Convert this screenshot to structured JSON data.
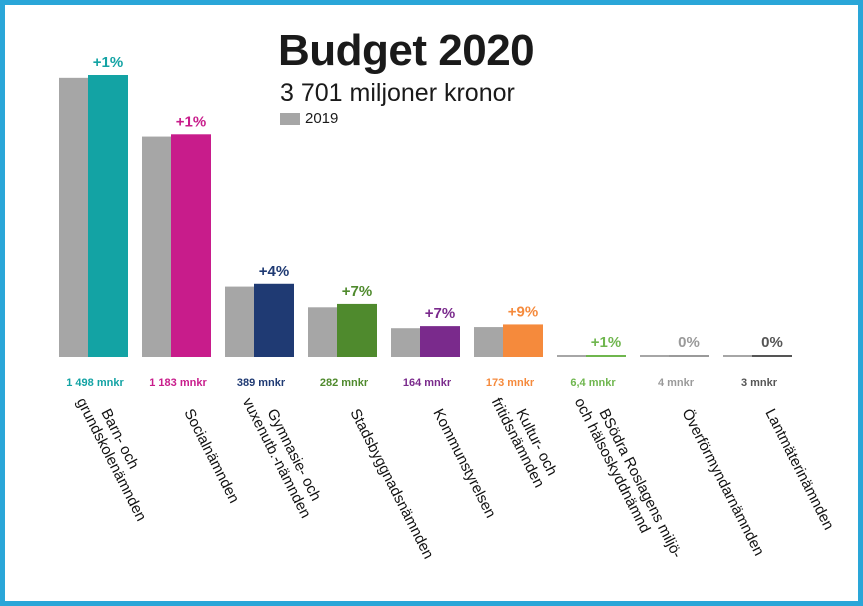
{
  "chart_data": {
    "type": "bar",
    "title": "Budget 2020",
    "subtitle": "3 701 miljoner kronor",
    "legend": [
      {
        "name": "2019",
        "color": "#a6a6a6"
      }
    ],
    "categories": [
      "Barn- och grundskolenämnden",
      "Socialnämnden",
      "Gymnasie- och vuxenutb.-nämnden",
      "Stadsbyggnadsnämnden",
      "Kommunstyrelsen",
      "Kultur- och fritidsnämnden",
      "BSödra Roslagens miljö- och hälsoskyddnämnd",
      "Överförmyndarnämnden",
      "Lantmäterinämnden"
    ],
    "label_lines": [
      [
        "Barn- och",
        "grundskolenämnden"
      ],
      [
        "Socialnämnden"
      ],
      [
        "Gymnasie- och",
        "vuxenutb.-nämnden"
      ],
      [
        "Stadsbyggnadsnämnden"
      ],
      [
        "Kommunstyrelsen"
      ],
      [
        "Kultur- och",
        "fritidsnämnden"
      ],
      [
        "BSödra Roslagens miljö-",
        "och hälsoskyddnämnd"
      ],
      [
        "Överförmyndarnämnden"
      ],
      [
        "Lantmäterinämnden"
      ]
    ],
    "series": [
      {
        "values": [
          1483,
          1171,
          374,
          264,
          153,
          159,
          6.3,
          4,
          3
        ]
      },
      {
        "name": "2020",
        "values": [
          1498,
          1183,
          389,
          282,
          164,
          173,
          6.4,
          4,
          3
        ]
      }
    ],
    "value_labels": [
      "1 498 mnkr",
      "1 183 mnkr",
      "389 mnkr",
      "282 mnkr",
      "164 mnkr",
      "173 mnkr",
      "6,4 mnkr",
      "4 mnkr",
      "3 mnkr"
    ],
    "change_labels": [
      "+1%",
      "+1%",
      "+4%",
      "+7%",
      "+7%",
      "+9%",
      "+1%",
      "0%",
      "0%"
    ],
    "colors": [
      "#13a3a4",
      "#c81c8b",
      "#1f3a73",
      "#4f8a2d",
      "#7a2a8c",
      "#f58a3c",
      "#6fb64e",
      "#9a9a9a",
      "#555555"
    ],
    "comparison_color": "#a6a6a6",
    "ylim": [
      0,
      1550
    ]
  }
}
